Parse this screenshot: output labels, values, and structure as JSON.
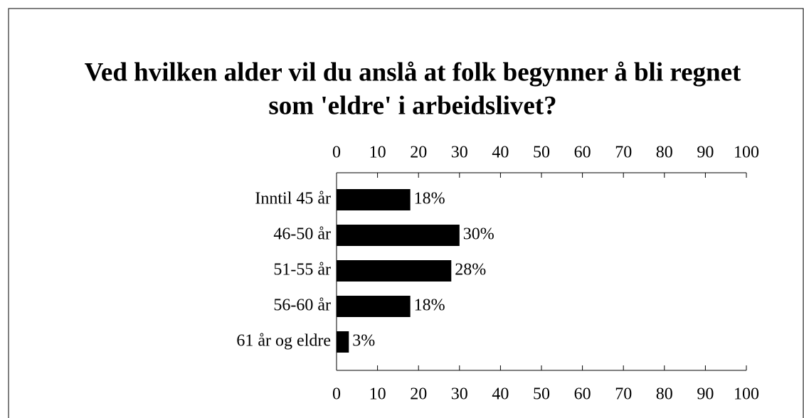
{
  "chart_data": {
    "type": "bar",
    "orientation": "horizontal",
    "title": [
      "Ved hvilken alder vil du anslå at folk begynner å bli regnet",
      "som 'eldre' i arbeidslivet?"
    ],
    "categories": [
      "Inntil 45 år",
      "46-50 år",
      "51-55 år",
      "56-60 år",
      "61 år og eldre"
    ],
    "values": [
      18,
      30,
      28,
      18,
      3
    ],
    "value_labels": [
      "18%",
      "30%",
      "28%",
      "18%",
      "3%"
    ],
    "color": "#000000",
    "xlim": [
      0,
      100
    ],
    "xticks": [
      0,
      10,
      20,
      30,
      40,
      50,
      60,
      70,
      80,
      90,
      100
    ]
  }
}
